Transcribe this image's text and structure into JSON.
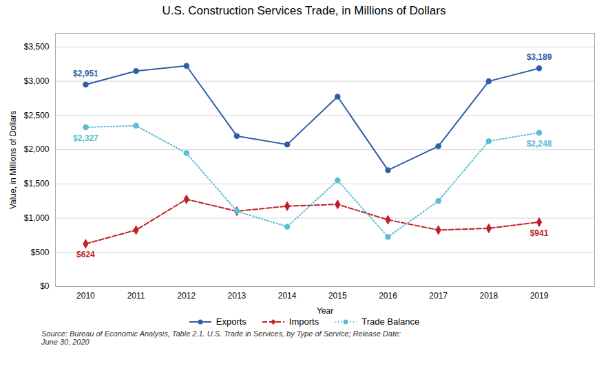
{
  "chart_data": {
    "type": "line",
    "title": "U.S. Construction Services Trade, in Millions of Dollars",
    "xlabel": "Year",
    "ylabel": "Value, in Millions of Dollars",
    "x": [
      2010,
      2011,
      2012,
      2013,
      2014,
      2015,
      2016,
      2017,
      2018,
      2019
    ],
    "xlim": [
      2009.4,
      2020.1
    ],
    "xticks": [
      2010,
      2011,
      2012,
      2013,
      2014,
      2015,
      2016,
      2017,
      2018,
      2019
    ],
    "ylim": [
      0,
      3700
    ],
    "yticks": [
      {
        "value": 0,
        "label": "$0"
      },
      {
        "value": 500,
        "label": "$500"
      },
      {
        "value": 1000,
        "label": "$1,000"
      },
      {
        "value": 1500,
        "label": "$1,500"
      },
      {
        "value": 2000,
        "label": "$2,000"
      },
      {
        "value": 2500,
        "label": "$2,500"
      },
      {
        "value": 3000,
        "label": "$3,000"
      },
      {
        "value": 3500,
        "label": "$3,500"
      }
    ],
    "grid": true,
    "legend": "bottom",
    "series": [
      {
        "name": "Exports",
        "color": "#2E5EA8",
        "marker": "circle",
        "line_style": "solid",
        "values": [
          2951,
          3150,
          3225,
          2200,
          2075,
          2775,
          1700,
          2050,
          3000,
          3189
        ]
      },
      {
        "name": "Imports",
        "color": "#BF2026",
        "marker": "diamond",
        "line_style": "dashed",
        "values": [
          624,
          825,
          1275,
          1100,
          1175,
          1200,
          975,
          825,
          850,
          941
        ]
      },
      {
        "name": "Trade Balance",
        "color": "#5BBCD6",
        "marker": "circle",
        "line_style": "dotted",
        "values": [
          2327,
          2350,
          1950,
          1100,
          875,
          1550,
          725,
          1250,
          2125,
          2248
        ]
      }
    ],
    "annotations": [
      {
        "text": "$2,951",
        "x": 2010,
        "y": 2951,
        "series": "Exports"
      },
      {
        "text": "$3,189",
        "x": 2019,
        "y": 3189,
        "series": "Exports"
      },
      {
        "text": "$624",
        "x": 2010,
        "y": 624,
        "series": "Imports"
      },
      {
        "text": "$941",
        "x": 2019,
        "y": 941,
        "series": "Imports"
      },
      {
        "text": "$2,327",
        "x": 2010,
        "y": 2327,
        "series": "Trade Balance"
      },
      {
        "text": "$2,248",
        "x": 2019,
        "y": 2248,
        "series": "Trade Balance"
      }
    ],
    "source": "Source: Bureau of Economic Analysis, Table 2.1. U.S. Trade in Services, by Type of Service; Release Date:\nJune 30, 2020"
  }
}
